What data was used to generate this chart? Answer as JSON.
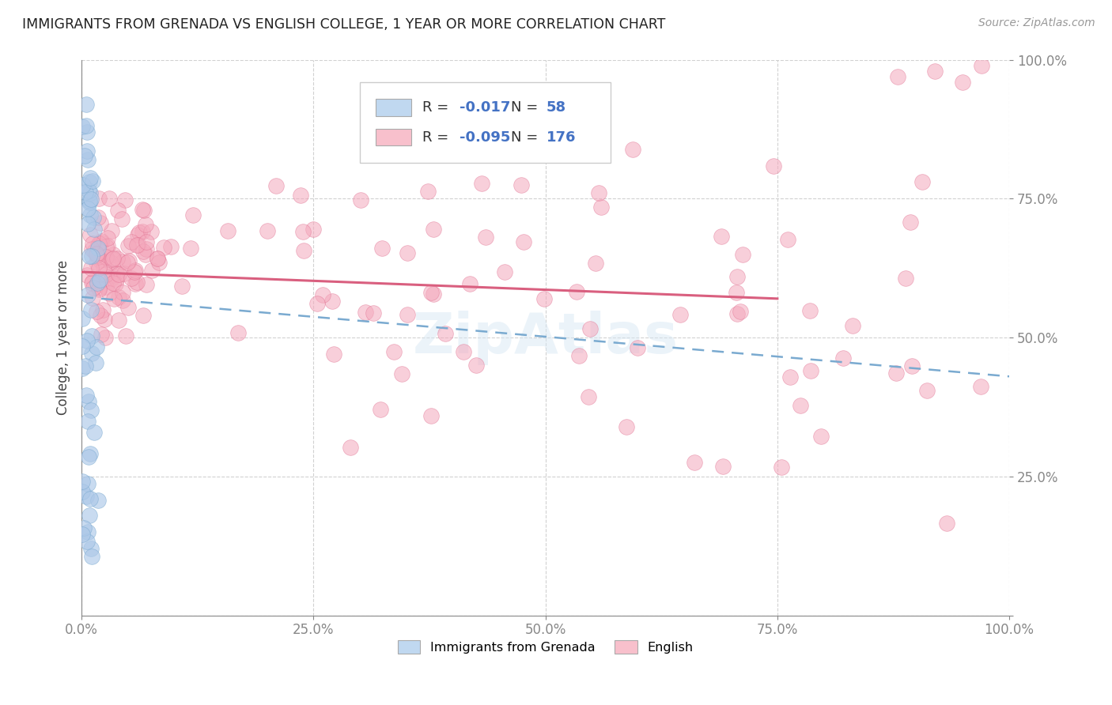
{
  "title": "IMMIGRANTS FROM GRENADA VS ENGLISH COLLEGE, 1 YEAR OR MORE CORRELATION CHART",
  "source": "Source: ZipAtlas.com",
  "ylabel": "College, 1 year or more",
  "xlim": [
    0.0,
    1.0
  ],
  "ylim": [
    0.0,
    1.0
  ],
  "xticks": [
    0.0,
    0.25,
    0.5,
    0.75,
    1.0
  ],
  "xticklabels": [
    "0.0%",
    "25.0%",
    "50.0%",
    "75.0%",
    "100.0%"
  ],
  "yticks": [
    0.0,
    0.25,
    0.5,
    0.75,
    1.0
  ],
  "yticklabels": [
    "",
    "25.0%",
    "50.0%",
    "75.0%",
    "100.0%"
  ],
  "blue_R": -0.017,
  "blue_N": 58,
  "pink_R": -0.095,
  "pink_N": 176,
  "blue_color": "#adc8e8",
  "pink_color": "#f4a8bc",
  "blue_edge_color": "#7aaad0",
  "pink_edge_color": "#e07090",
  "blue_line_color": "#7aaad0",
  "pink_line_color": "#d95f7f",
  "legend_label_blue": "Immigrants from Grenada",
  "legend_label_pink": "English",
  "background_color": "#ffffff",
  "grid_color": "#cccccc",
  "title_color": "#222222",
  "axis_color": "#888888",
  "tick_color_y": "#4472c4",
  "tick_color_x": "#666666",
  "watermark_color": "#d8e8f4",
  "blue_line_start_y": 0.573,
  "blue_line_end_y": 0.43,
  "pink_line_start_y": 0.618,
  "pink_line_end_y": 0.57,
  "pink_line_end_x": 0.75
}
